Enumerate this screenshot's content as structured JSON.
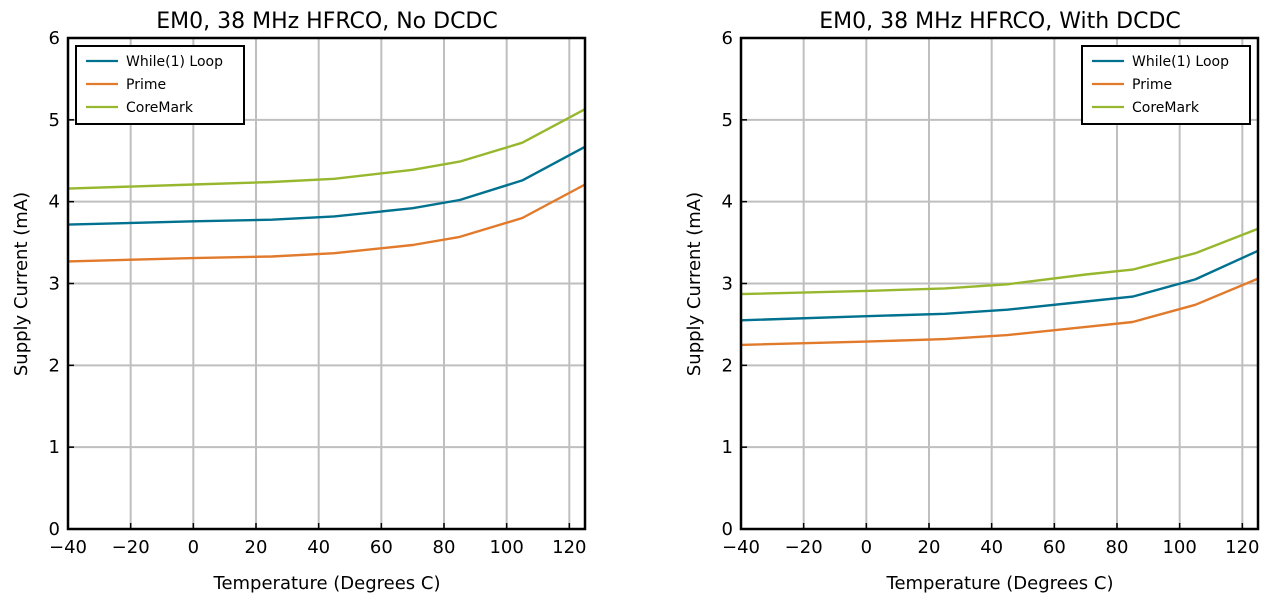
{
  "chart_data": [
    {
      "type": "line",
      "title": "EM0, 38 MHz HFRCO, No DCDC",
      "xlabel": "Temperature (Degrees C)",
      "ylabel": "Supply Current (mA)",
      "xlim": [
        -40,
        125
      ],
      "ylim": [
        0,
        6
      ],
      "xticks": [
        "−40",
        "−20",
        "0",
        "20",
        "40",
        "60",
        "80",
        "100",
        "120"
      ],
      "yticks": [
        "0",
        "1",
        "2",
        "3",
        "4",
        "5",
        "6"
      ],
      "grid": true,
      "legend_position": "top-left",
      "x": [
        -40,
        0,
        25,
        45,
        70,
        85,
        105,
        125
      ],
      "series": [
        {
          "name": "While(1) Loop",
          "color": "#00718f",
          "values": [
            3.72,
            3.76,
            3.78,
            3.82,
            3.92,
            4.02,
            4.26,
            4.67
          ]
        },
        {
          "name": "Prime",
          "color": "#e17a2b",
          "values": [
            3.27,
            3.31,
            3.33,
            3.37,
            3.47,
            3.57,
            3.8,
            4.21
          ]
        },
        {
          "name": "CoreMark",
          "color": "#97b82e",
          "values": [
            4.16,
            4.21,
            4.24,
            4.28,
            4.39,
            4.49,
            4.72,
            5.13
          ]
        }
      ]
    },
    {
      "type": "line",
      "title": "EM0, 38 MHz HFRCO, With DCDC",
      "xlabel": "Temperature (Degrees C)",
      "ylabel": "Supply Current (mA)",
      "xlim": [
        -40,
        125
      ],
      "ylim": [
        0,
        6
      ],
      "xticks": [
        "−40",
        "−20",
        "0",
        "20",
        "40",
        "60",
        "80",
        "100",
        "120"
      ],
      "yticks": [
        "0",
        "1",
        "2",
        "3",
        "4",
        "5",
        "6"
      ],
      "grid": true,
      "legend_position": "top-right",
      "x": [
        -40,
        0,
        25,
        45,
        70,
        85,
        105,
        125
      ],
      "series": [
        {
          "name": "While(1) Loop",
          "color": "#00718f",
          "values": [
            2.55,
            2.6,
            2.63,
            2.68,
            2.78,
            2.84,
            3.05,
            3.4
          ]
        },
        {
          "name": "Prime",
          "color": "#e17a2b",
          "values": [
            2.25,
            2.29,
            2.32,
            2.37,
            2.47,
            2.53,
            2.74,
            3.06
          ]
        },
        {
          "name": "CoreMark",
          "color": "#97b82e",
          "values": [
            2.87,
            2.91,
            2.94,
            2.99,
            3.11,
            3.17,
            3.37,
            3.67
          ]
        }
      ]
    }
  ]
}
